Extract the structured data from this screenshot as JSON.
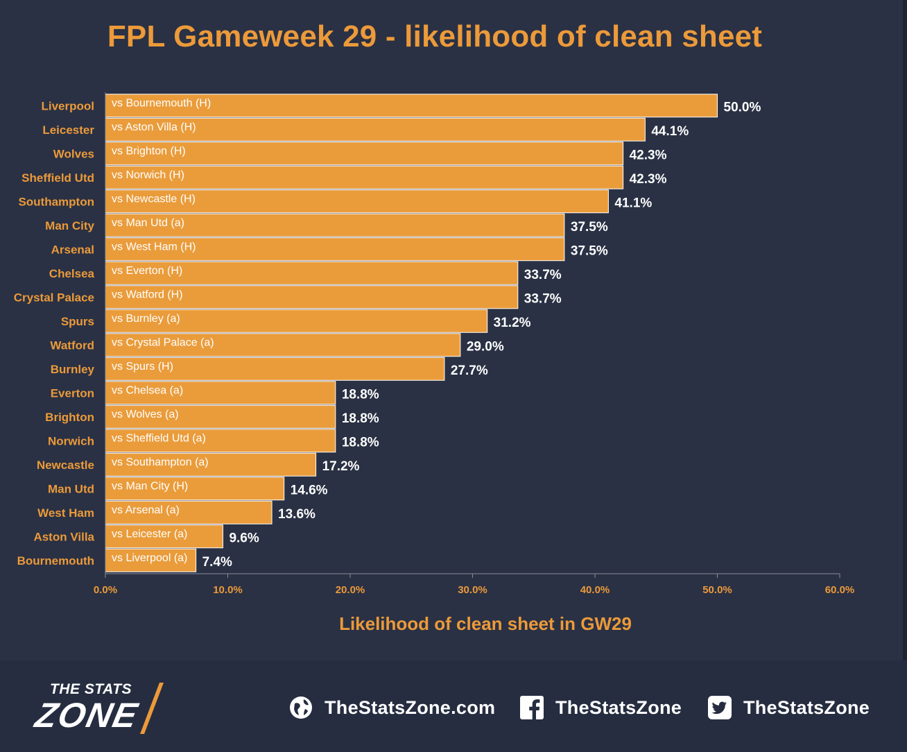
{
  "title": "FPL Gameweek 29 - likelihood of clean sheet",
  "chart_data": {
    "type": "bar",
    "orientation": "horizontal",
    "title": "FPL Gameweek 29 - likelihood of clean sheet",
    "xlabel": "Likelihood of clean sheet in GW29",
    "ylabel": "",
    "xlim": [
      0,
      60
    ],
    "x_ticks": [
      "0.0%",
      "10.0%",
      "20.0%",
      "30.0%",
      "40.0%",
      "50.0%",
      "60.0%"
    ],
    "grid": false,
    "bar_color": "#ea9c3b",
    "categories": [
      "Liverpool",
      "Leicester",
      "Wolves",
      "Sheffield Utd",
      "Southampton",
      "Man City",
      "Arsenal",
      "Chelsea",
      "Crystal Palace",
      "Spurs",
      "Watford",
      "Burnley",
      "Everton",
      "Brighton",
      "Norwich",
      "Newcastle",
      "Man Utd",
      "West Ham",
      "Aston Villa",
      "Bournemouth"
    ],
    "fixtures": [
      "vs Bournemouth (H)",
      "vs Aston Villa (H)",
      "vs Brighton (H)",
      "vs Norwich (H)",
      "vs Newcastle (H)",
      "vs Man Utd (a)",
      "vs West Ham (H)",
      "vs Everton (H)",
      "vs Watford (H)",
      "vs Burnley (a)",
      "vs Crystal Palace (a)",
      "vs Spurs (H)",
      "vs Chelsea (a)",
      "vs Wolves (a)",
      "vs Sheffield Utd (a)",
      "vs Southampton (a)",
      "vs Man City (H)",
      "vs Arsenal (a)",
      "vs Leicester (a)",
      "vs Liverpool (a)"
    ],
    "values": [
      50.0,
      44.1,
      42.3,
      42.3,
      41.1,
      37.5,
      37.5,
      33.7,
      33.7,
      31.2,
      29.0,
      27.7,
      18.8,
      18.8,
      18.8,
      17.2,
      14.6,
      13.6,
      9.6,
      7.4
    ],
    "value_labels": [
      "50.0%",
      "44.1%",
      "42.3%",
      "42.3%",
      "41.1%",
      "37.5%",
      "37.5%",
      "33.7%",
      "33.7%",
      "31.2%",
      "29.0%",
      "27.7%",
      "18.8%",
      "18.8%",
      "18.8%",
      "17.2%",
      "14.6%",
      "13.6%",
      "9.6%",
      "7.4%"
    ]
  },
  "colors": {
    "background": "#2a3144",
    "accent": "#ec9a3a",
    "bar": "#ea9c3b",
    "text": "#ffffff"
  },
  "footer": {
    "logo_top": "THE STATS",
    "logo_bottom": "ZONE",
    "website": "TheStatsZone.com",
    "facebook": "TheStatsZone",
    "twitter": "TheStatsZone",
    "icons": [
      "globe-icon",
      "facebook-icon",
      "twitter-icon"
    ]
  }
}
